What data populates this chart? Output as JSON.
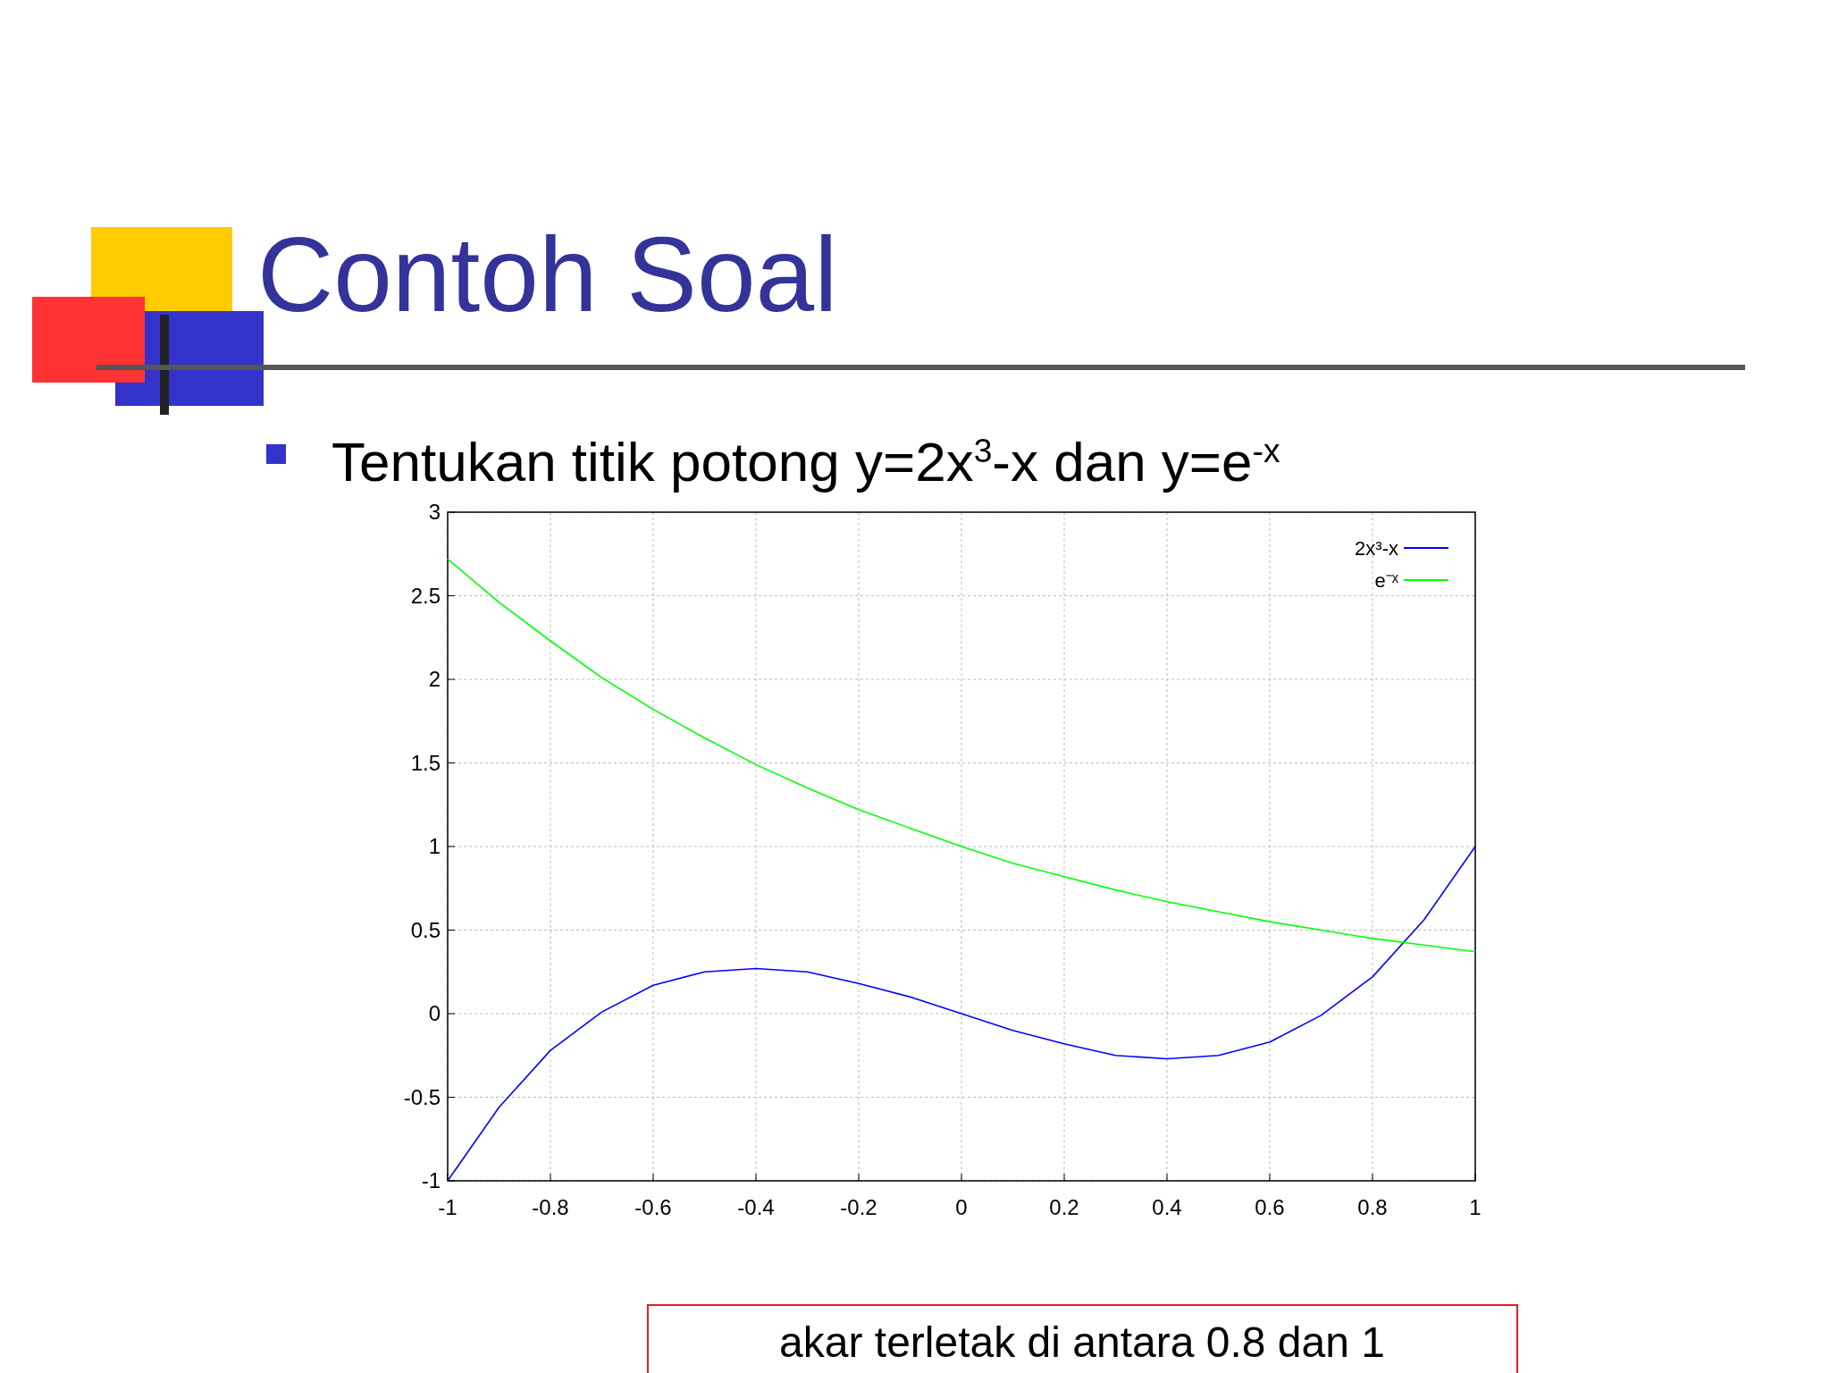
{
  "chart_data": {
    "type": "line",
    "title": "Contoh Soal",
    "subtitle": "Tentukan titik potong y=2x$^{3}$-x dan y=e$^{-x}$",
    "x": [
      -1,
      -0.9,
      -0.8,
      -0.7,
      -0.6,
      -0.5,
      -0.4,
      -0.3,
      -0.2,
      -0.1,
      0,
      0.1,
      0.2,
      0.3,
      0.4,
      0.5,
      0.6,
      0.7,
      0.8,
      0.9,
      1
    ],
    "series": [
      {
        "name": "2x³-x",
        "color": "#0000ff",
        "values": [
          -1,
          -0.56,
          -0.22,
          0.01,
          0.17,
          0.25,
          0.27,
          0.25,
          0.18,
          0.1,
          0,
          -0.1,
          -0.18,
          -0.25,
          -0.27,
          -0.25,
          -0.17,
          -0.01,
          0.22,
          0.56,
          1
        ]
      },
      {
        "name": "e⁻ˣ",
        "color": "#00ff00",
        "values": [
          2.72,
          2.46,
          2.23,
          2.01,
          1.82,
          1.65,
          1.49,
          1.35,
          1.22,
          1.11,
          1,
          0.9,
          0.82,
          0.74,
          0.67,
          0.61,
          0.55,
          0.5,
          0.45,
          0.41,
          0.37
        ]
      }
    ],
    "xlim": [
      -1,
      1
    ],
    "xticks": [
      -1,
      -0.8,
      -0.6,
      -0.4,
      -0.2,
      0,
      0.2,
      0.4,
      0.6,
      0.8,
      1
    ],
    "ylim": [
      -1,
      3
    ],
    "yticks": [
      -1,
      -0.5,
      0,
      0.5,
      1,
      1.5,
      2,
      2.5,
      3
    ],
    "grid": true,
    "legend": "top right",
    "marker": "none",
    "line_style": "solid",
    "annotations": [
      "akar terletak di antara 0.8 dan 1"
    ]
  }
}
